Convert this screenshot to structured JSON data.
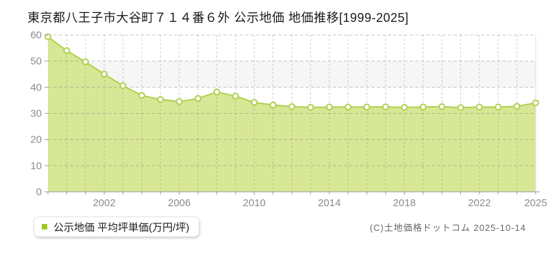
{
  "page": {
    "title": "東京都八王子市大谷町７１４番６外 公示地価 地価推移[1999-2025]",
    "copyright": "(C)土地価格ドットコム 2025-10-14"
  },
  "legend": {
    "label": "公示地価 平均坪単価(万円/坪)"
  },
  "chart_data": {
    "type": "area",
    "title": "東京都八王子市大谷町７１４番６外 公示地価 地価推移[1999-2025]",
    "xlabel": "",
    "ylabel": "平均坪単価(万円/坪)",
    "x": [
      1999,
      2000,
      2001,
      2002,
      2003,
      2004,
      2005,
      2006,
      2007,
      2008,
      2009,
      2010,
      2011,
      2012,
      2013,
      2014,
      2015,
      2016,
      2017,
      2018,
      2019,
      2020,
      2021,
      2022,
      2023,
      2024,
      2025
    ],
    "series": [
      {
        "name": "公示地価 平均坪単価(万円/坪)",
        "values": [
          59.3,
          54.0,
          49.7,
          45.0,
          40.6,
          36.9,
          35.3,
          34.5,
          35.7,
          38.2,
          36.6,
          34.2,
          33.2,
          32.6,
          32.3,
          32.4,
          32.4,
          32.4,
          32.5,
          32.3,
          32.4,
          32.6,
          32.2,
          32.4,
          32.4,
          32.7,
          34.0
        ]
      }
    ],
    "ylim": [
      0,
      60
    ],
    "yticks": [
      0,
      10,
      20,
      30,
      40,
      50,
      60
    ],
    "xtick_labels": [
      "2002",
      "2006",
      "2010",
      "2014",
      "2018",
      "2022",
      "2025"
    ],
    "grid": true,
    "grid_style": "dashed",
    "legend_position": "bottom-left",
    "colors": {
      "line": "#afd04d",
      "fill": "#d7e795",
      "marker_fill": "#ffffff",
      "marker_ring": "#afd04d",
      "grid": "#c8c8c8",
      "band": "#f6f6f6",
      "axis": "#999999",
      "tick_label": "#8c8c8c",
      "plot_border": "#dddddd",
      "legend_bullet": "#a3c71d"
    }
  }
}
